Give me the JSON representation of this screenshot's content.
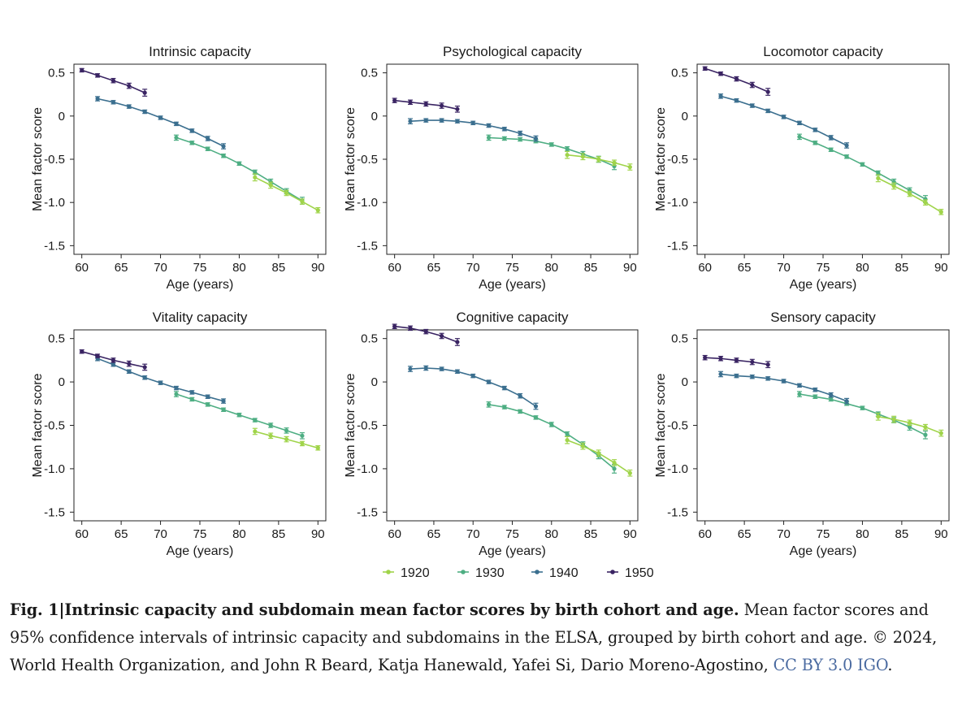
{
  "colors": {
    "1920": "#a0d44a",
    "1930": "#4eae83",
    "1940": "#3b6f8f",
    "1950": "#3a2463",
    "axis": "#222222"
  },
  "chart_data": {
    "type": "line",
    "shared": {
      "xlabel": "Age (years)",
      "ylabel": "Mean factor score",
      "xlim": [
        59,
        91
      ],
      "ylim": [
        -1.6,
        0.6
      ],
      "xticks": [
        60,
        65,
        70,
        75,
        80,
        85,
        90
      ],
      "xtick_labels": [
        "60",
        "65",
        "70",
        "75",
        "80",
        "85",
        "90"
      ],
      "yticks": [
        0.5,
        0,
        -0.5,
        -1.0,
        -1.5
      ],
      "ytick_labels": [
        "0.5",
        "0",
        "-0.5",
        "-1.0",
        "-1.5"
      ],
      "error_bars": "95% confidence intervals",
      "legend": [
        "1920",
        "1930",
        "1940",
        "1950"
      ],
      "legend_position": "bottom"
    },
    "panels": [
      {
        "title": "Intrinsic capacity",
        "series": [
          {
            "name": "1950",
            "x": [
              60,
              62,
              64,
              66,
              68
            ],
            "y": [
              0.53,
              0.47,
              0.41,
              0.35,
              0.27
            ],
            "err": [
              0.02,
              0.02,
              0.025,
              0.03,
              0.04
            ]
          },
          {
            "name": "1940",
            "x": [
              62,
              64,
              66,
              68,
              70,
              72,
              74,
              76,
              78
            ],
            "y": [
              0.2,
              0.16,
              0.11,
              0.05,
              -0.02,
              -0.09,
              -0.17,
              -0.26,
              -0.35
            ],
            "err": [
              0.025,
              0.02,
              0.02,
              0.02,
              0.02,
              0.02,
              0.02,
              0.025,
              0.03
            ]
          },
          {
            "name": "1930",
            "x": [
              72,
              74,
              76,
              78,
              80,
              82,
              84,
              86,
              88
            ],
            "y": [
              -0.25,
              -0.31,
              -0.38,
              -0.46,
              -0.55,
              -0.65,
              -0.76,
              -0.87,
              -0.98
            ],
            "err": [
              0.03,
              0.02,
              0.02,
              0.02,
              0.02,
              0.025,
              0.03,
              0.03,
              0.04
            ]
          },
          {
            "name": "1920",
            "x": [
              82,
              84,
              86,
              88,
              90
            ],
            "y": [
              -0.71,
              -0.8,
              -0.89,
              -0.99,
              -1.09
            ],
            "err": [
              0.04,
              0.035,
              0.03,
              0.03,
              0.03
            ]
          }
        ]
      },
      {
        "title": "Psychological capacity",
        "series": [
          {
            "name": "1950",
            "x": [
              60,
              62,
              64,
              66,
              68
            ],
            "y": [
              0.18,
              0.16,
              0.14,
              0.12,
              0.08
            ],
            "err": [
              0.025,
              0.025,
              0.025,
              0.03,
              0.035
            ]
          },
          {
            "name": "1940",
            "x": [
              62,
              64,
              66,
              68,
              70,
              72,
              74,
              76,
              78
            ],
            "y": [
              -0.06,
              -0.05,
              -0.05,
              -0.06,
              -0.08,
              -0.11,
              -0.15,
              -0.2,
              -0.26
            ],
            "err": [
              0.03,
              0.02,
              0.02,
              0.02,
              0.02,
              0.02,
              0.02,
              0.025,
              0.03
            ]
          },
          {
            "name": "1930",
            "x": [
              72,
              74,
              76,
              78,
              80,
              82,
              84,
              86,
              88
            ],
            "y": [
              -0.25,
              -0.26,
              -0.27,
              -0.29,
              -0.33,
              -0.38,
              -0.44,
              -0.5,
              -0.58
            ],
            "err": [
              0.03,
              0.02,
              0.02,
              0.02,
              0.02,
              0.025,
              0.03,
              0.035,
              0.04
            ]
          },
          {
            "name": "1920",
            "x": [
              82,
              84,
              86,
              88,
              90
            ],
            "y": [
              -0.45,
              -0.47,
              -0.5,
              -0.54,
              -0.59
            ],
            "err": [
              0.04,
              0.035,
              0.03,
              0.03,
              0.035
            ]
          }
        ]
      },
      {
        "title": "Locomotor capacity",
        "series": [
          {
            "name": "1950",
            "x": [
              60,
              62,
              64,
              66,
              68
            ],
            "y": [
              0.55,
              0.49,
              0.43,
              0.36,
              0.28
            ],
            "err": [
              0.02,
              0.02,
              0.025,
              0.03,
              0.04
            ]
          },
          {
            "name": "1940",
            "x": [
              62,
              64,
              66,
              68,
              70,
              72,
              74,
              76,
              78
            ],
            "y": [
              0.23,
              0.18,
              0.12,
              0.06,
              -0.01,
              -0.08,
              -0.16,
              -0.25,
              -0.34
            ],
            "err": [
              0.025,
              0.02,
              0.02,
              0.02,
              0.02,
              0.02,
              0.02,
              0.025,
              0.03
            ]
          },
          {
            "name": "1930",
            "x": [
              72,
              74,
              76,
              78,
              80,
              82,
              84,
              86,
              88
            ],
            "y": [
              -0.24,
              -0.31,
              -0.39,
              -0.47,
              -0.56,
              -0.66,
              -0.76,
              -0.86,
              -0.96
            ],
            "err": [
              0.03,
              0.02,
              0.02,
              0.02,
              0.02,
              0.025,
              0.03,
              0.03,
              0.04
            ]
          },
          {
            "name": "1920",
            "x": [
              82,
              84,
              86,
              88,
              90
            ],
            "y": [
              -0.72,
              -0.81,
              -0.9,
              -1.0,
              -1.11
            ],
            "err": [
              0.04,
              0.035,
              0.03,
              0.03,
              0.03
            ]
          }
        ]
      },
      {
        "title": "Vitality capacity",
        "series": [
          {
            "name": "1950",
            "x": [
              60,
              62,
              64,
              66,
              68
            ],
            "y": [
              0.35,
              0.3,
              0.25,
              0.21,
              0.17
            ],
            "err": [
              0.02,
              0.02,
              0.025,
              0.03,
              0.035
            ]
          },
          {
            "name": "1940",
            "x": [
              62,
              64,
              66,
              68,
              70,
              72,
              74,
              76,
              78
            ],
            "y": [
              0.27,
              0.2,
              0.12,
              0.05,
              -0.01,
              -0.07,
              -0.12,
              -0.17,
              -0.22
            ],
            "err": [
              0.025,
              0.02,
              0.02,
              0.02,
              0.02,
              0.02,
              0.02,
              0.02,
              0.025
            ]
          },
          {
            "name": "1930",
            "x": [
              72,
              74,
              76,
              78,
              80,
              82,
              84,
              86,
              88
            ],
            "y": [
              -0.14,
              -0.2,
              -0.26,
              -0.32,
              -0.38,
              -0.44,
              -0.5,
              -0.56,
              -0.62
            ],
            "err": [
              0.03,
              0.02,
              0.02,
              0.02,
              0.02,
              0.02,
              0.025,
              0.03,
              0.035
            ]
          },
          {
            "name": "1920",
            "x": [
              82,
              84,
              86,
              88,
              90
            ],
            "y": [
              -0.57,
              -0.62,
              -0.66,
              -0.71,
              -0.76
            ],
            "err": [
              0.035,
              0.03,
              0.03,
              0.025,
              0.025
            ]
          }
        ]
      },
      {
        "title": "Cognitive capacity",
        "series": [
          {
            "name": "1950",
            "x": [
              60,
              62,
              64,
              66,
              68
            ],
            "y": [
              0.64,
              0.62,
              0.58,
              0.53,
              0.46
            ],
            "err": [
              0.025,
              0.025,
              0.025,
              0.03,
              0.04
            ]
          },
          {
            "name": "1940",
            "x": [
              62,
              64,
              66,
              68,
              70,
              72,
              74,
              76,
              78
            ],
            "y": [
              0.15,
              0.16,
              0.15,
              0.12,
              0.07,
              0.0,
              -0.07,
              -0.16,
              -0.28
            ],
            "err": [
              0.03,
              0.025,
              0.02,
              0.02,
              0.02,
              0.02,
              0.02,
              0.025,
              0.035
            ]
          },
          {
            "name": "1930",
            "x": [
              72,
              74,
              76,
              78,
              80,
              82,
              84,
              86,
              88
            ],
            "y": [
              -0.26,
              -0.29,
              -0.34,
              -0.41,
              -0.49,
              -0.6,
              -0.72,
              -0.85,
              -1.0
            ],
            "err": [
              0.03,
              0.02,
              0.02,
              0.02,
              0.025,
              0.025,
              0.03,
              0.035,
              0.05
            ]
          },
          {
            "name": "1920",
            "x": [
              82,
              84,
              86,
              88,
              90
            ],
            "y": [
              -0.67,
              -0.74,
              -0.82,
              -0.93,
              -1.05
            ],
            "err": [
              0.04,
              0.035,
              0.035,
              0.035,
              0.035
            ]
          }
        ]
      },
      {
        "title": "Sensory capacity",
        "series": [
          {
            "name": "1950",
            "x": [
              60,
              62,
              64,
              66,
              68
            ],
            "y": [
              0.28,
              0.27,
              0.25,
              0.23,
              0.2
            ],
            "err": [
              0.025,
              0.025,
              0.025,
              0.03,
              0.035
            ]
          },
          {
            "name": "1940",
            "x": [
              62,
              64,
              66,
              68,
              70,
              72,
              74,
              76,
              78
            ],
            "y": [
              0.09,
              0.07,
              0.06,
              0.04,
              0.01,
              -0.04,
              -0.09,
              -0.15,
              -0.22
            ],
            "err": [
              0.03,
              0.02,
              0.02,
              0.02,
              0.02,
              0.02,
              0.02,
              0.025,
              0.03
            ]
          },
          {
            "name": "1930",
            "x": [
              72,
              74,
              76,
              78,
              80,
              82,
              84,
              86,
              88
            ],
            "y": [
              -0.14,
              -0.17,
              -0.2,
              -0.25,
              -0.3,
              -0.37,
              -0.44,
              -0.52,
              -0.61
            ],
            "err": [
              0.03,
              0.02,
              0.02,
              0.02,
              0.02,
              0.025,
              0.03,
              0.035,
              0.045
            ]
          },
          {
            "name": "1920",
            "x": [
              82,
              84,
              86,
              88,
              90
            ],
            "y": [
              -0.4,
              -0.43,
              -0.47,
              -0.52,
              -0.59
            ],
            "err": [
              0.04,
              0.035,
              0.03,
              0.03,
              0.035
            ]
          }
        ]
      }
    ]
  },
  "caption": {
    "label": "Fig. 1",
    "separator": "|",
    "title": "Intrinsic capacity and subdomain mean factor scores by birth cohort and age.",
    "body": " Mean factor scores and 95% confidence intervals of intrinsic capacity and subdomains in the ELSA, grouped by birth cohort and age. © 2024, World Health Organization, and John R Beard, Katja Hanewald, Yafei Si, Dario Moreno-Agostino,",
    "license": "CC BY 3.0 IGO",
    "end": "."
  }
}
